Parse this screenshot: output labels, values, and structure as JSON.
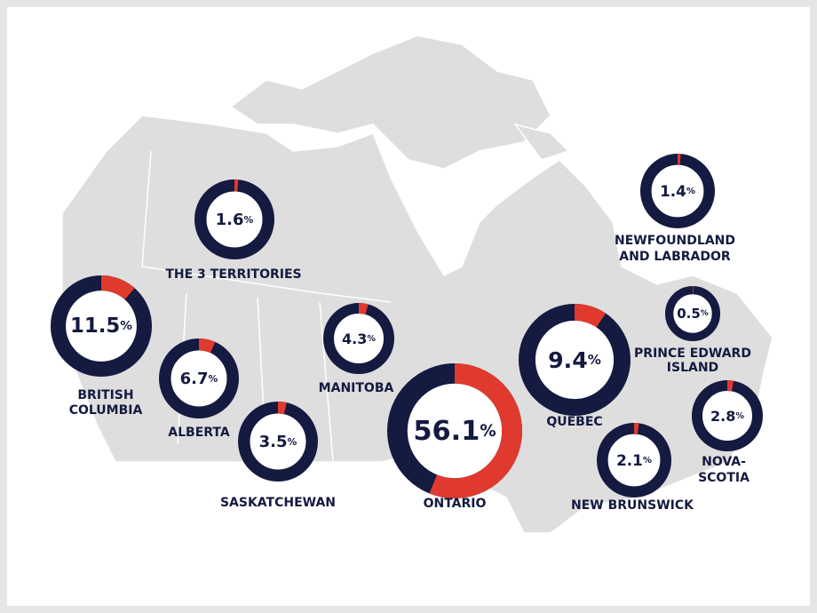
{
  "unit": "%",
  "ring_color": "#141a40",
  "share_color": "#e03a2e",
  "regions": [
    {
      "name": [
        "THE 3 TERRITORIES"
      ],
      "value": 1.6
    },
    {
      "name": [
        "BRITISH",
        "COLUMBIA"
      ],
      "value": 11.5
    },
    {
      "name": [
        "ALBERTA"
      ],
      "value": 6.7
    },
    {
      "name": [
        "SASKATCHEWAN"
      ],
      "value": 3.5
    },
    {
      "name": [
        "MANITOBA"
      ],
      "value": 4.3
    },
    {
      "name": [
        "ONTARIO"
      ],
      "value": 56.1
    },
    {
      "name": [
        "QUEBEC"
      ],
      "value": 9.4
    },
    {
      "name": [
        "NEWFOUNDLAND",
        "AND LABRADOR"
      ],
      "value": 1.4
    },
    {
      "name": [
        "PRINCE EDWARD",
        "ISLAND"
      ],
      "value": 0.5
    },
    {
      "name": [
        "NEW BRUNSWICK"
      ],
      "value": 2.1
    },
    {
      "name": [
        "NOVA-",
        "SCOTIA"
      ],
      "value": 2.8
    }
  ]
}
